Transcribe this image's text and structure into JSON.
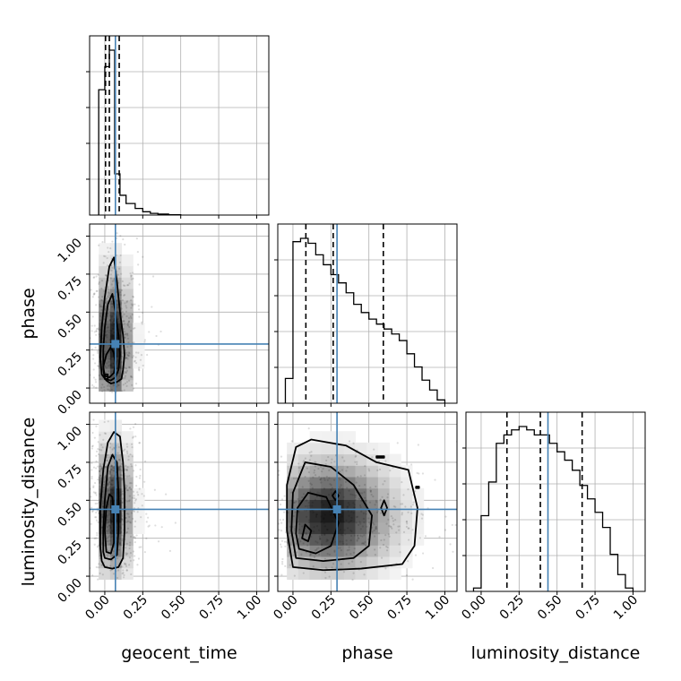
{
  "chart_data": {
    "type": "corner",
    "parameters": [
      "geocent_time",
      "phase",
      "luminosity_distance"
    ],
    "axis_labels": {
      "x": [
        "geocent_time",
        "phase",
        "luminosity_distance"
      ],
      "y": [
        "",
        "phase",
        "luminosity_distance"
      ]
    },
    "ranges": [
      [
        -0.1,
        1.08
      ],
      [
        -0.1,
        1.08
      ],
      [
        -0.1,
        1.08
      ]
    ],
    "ticks": [
      0.0,
      0.25,
      0.5,
      0.75,
      1.0
    ],
    "tick_labels": [
      "0.00",
      "0.25",
      "0.50",
      "0.75",
      "1.00"
    ],
    "grid": true,
    "colors": {
      "truth": "#4682b4",
      "hist": "#000000",
      "grid": "#b0b0b0",
      "density": "#000000"
    },
    "truths": {
      "geocent_time": 0.07,
      "phase": 0.29,
      "luminosity_distance": 0.44
    },
    "quantiles": {
      "geocent_time": [
        0.005,
        0.03,
        0.095
      ],
      "phase": [
        0.085,
        0.265,
        0.595
      ],
      "luminosity_distance": [
        0.17,
        0.39,
        0.665
      ]
    },
    "histograms": {
      "geocent_time": {
        "edges": [
          -0.04,
          0.0,
          0.03,
          0.065,
          0.1,
          0.14,
          0.2,
          0.25,
          0.3,
          0.35,
          0.42,
          0.5
        ],
        "counts": [
          0.76,
          0.9,
          1.0,
          0.25,
          0.12,
          0.07,
          0.04,
          0.02,
          0.01,
          0.006,
          0.002
        ]
      },
      "phase": {
        "edges": [
          -0.05,
          0.0,
          0.05,
          0.1,
          0.15,
          0.2,
          0.25,
          0.3,
          0.35,
          0.4,
          0.45,
          0.5,
          0.55,
          0.6,
          0.65,
          0.7,
          0.75,
          0.8,
          0.85,
          0.9,
          0.95,
          1.0
        ],
        "counts": [
          0.15,
          0.98,
          1.0,
          0.97,
          0.9,
          0.84,
          0.78,
          0.73,
          0.67,
          0.6,
          0.55,
          0.51,
          0.48,
          0.45,
          0.42,
          0.38,
          0.3,
          0.22,
          0.14,
          0.08,
          0.02
        ]
      },
      "luminosity_distance": {
        "edges": [
          -0.05,
          0.0,
          0.05,
          0.1,
          0.15,
          0.2,
          0.25,
          0.3,
          0.35,
          0.4,
          0.45,
          0.5,
          0.55,
          0.6,
          0.65,
          0.7,
          0.75,
          0.8,
          0.85,
          0.9,
          0.95,
          1.0
        ],
        "counts": [
          0.02,
          0.45,
          0.65,
          0.88,
          0.93,
          0.96,
          0.98,
          0.96,
          0.93,
          0.93,
          0.88,
          0.83,
          0.78,
          0.72,
          0.63,
          0.55,
          0.47,
          0.38,
          0.22,
          0.1,
          0.02
        ]
      }
    },
    "panels_2d": [
      {
        "x": "geocent_time",
        "y": "phase",
        "center": [
          0.055,
          0.3
        ],
        "spread": [
          0.07,
          0.28
        ],
        "contours": [
          [
            [
              0.01,
              0.05
            ],
            [
              0.04,
              0.03
            ],
            [
              0.08,
              0.04
            ],
            [
              0.11,
              0.06
            ],
            [
              0.12,
              0.12
            ],
            [
              0.13,
              0.22
            ],
            [
              0.12,
              0.35
            ],
            [
              0.1,
              0.5
            ],
            [
              0.08,
              0.7
            ],
            [
              0.06,
              0.86
            ],
            [
              0.03,
              0.8
            ],
            [
              0.0,
              0.6
            ],
            [
              -0.02,
              0.4
            ],
            [
              -0.03,
              0.2
            ],
            [
              -0.02,
              0.09
            ]
          ],
          [
            [
              0.0,
              0.06
            ],
            [
              0.04,
              0.05
            ],
            [
              0.07,
              0.07
            ],
            [
              0.09,
              0.12
            ],
            [
              0.1,
              0.22
            ],
            [
              0.09,
              0.35
            ],
            [
              0.07,
              0.5
            ],
            [
              0.05,
              0.62
            ],
            [
              0.02,
              0.55
            ],
            [
              0.0,
              0.4
            ],
            [
              -0.01,
              0.25
            ],
            [
              -0.01,
              0.12
            ]
          ],
          [
            [
              0.0,
              0.08
            ],
            [
              0.03,
              0.07
            ],
            [
              0.06,
              0.1
            ],
            [
              0.07,
              0.16
            ],
            [
              0.06,
              0.23
            ],
            [
              0.04,
              0.27
            ],
            [
              0.01,
              0.22
            ],
            [
              -0.01,
              0.14
            ]
          ],
          [
            [
              0.0,
              0.06
            ],
            [
              0.02,
              0.06
            ],
            [
              0.02,
              0.09
            ],
            [
              0.0,
              0.09
            ]
          ]
        ]
      },
      {
        "x": "geocent_time",
        "y": "luminosity_distance",
        "center": [
          0.055,
          0.44
        ],
        "spread": [
          0.07,
          0.25
        ],
        "contours": [
          [
            [
              0.0,
              0.06
            ],
            [
              0.05,
              0.05
            ],
            [
              0.09,
              0.06
            ],
            [
              0.12,
              0.12
            ],
            [
              0.13,
              0.3
            ],
            [
              0.13,
              0.55
            ],
            [
              0.12,
              0.75
            ],
            [
              0.1,
              0.92
            ],
            [
              0.06,
              0.95
            ],
            [
              0.02,
              0.88
            ],
            [
              -0.01,
              0.7
            ],
            [
              -0.03,
              0.45
            ],
            [
              -0.03,
              0.2
            ],
            [
              -0.02,
              0.1
            ]
          ],
          [
            [
              0.0,
              0.12
            ],
            [
              0.04,
              0.11
            ],
            [
              0.08,
              0.14
            ],
            [
              0.09,
              0.3
            ],
            [
              0.09,
              0.55
            ],
            [
              0.08,
              0.75
            ],
            [
              0.05,
              0.8
            ],
            [
              0.02,
              0.72
            ],
            [
              0.0,
              0.5
            ],
            [
              -0.01,
              0.3
            ],
            [
              -0.01,
              0.16
            ]
          ],
          [
            [
              0.01,
              0.16
            ],
            [
              0.04,
              0.15
            ],
            [
              0.06,
              0.22
            ],
            [
              0.06,
              0.4
            ],
            [
              0.05,
              0.52
            ],
            [
              0.03,
              0.54
            ],
            [
              0.01,
              0.45
            ],
            [
              0.0,
              0.3
            ]
          ]
        ]
      },
      {
        "x": "phase",
        "y": "luminosity_distance",
        "center": [
          0.25,
          0.4
        ],
        "spread": [
          0.25,
          0.22
        ],
        "contours": [
          [
            [
              0.0,
              0.06
            ],
            [
              0.2,
              0.04
            ],
            [
              0.45,
              0.05
            ],
            [
              0.72,
              0.08
            ],
            [
              0.8,
              0.2
            ],
            [
              0.82,
              0.45
            ],
            [
              0.76,
              0.7
            ],
            [
              0.55,
              0.75
            ],
            [
              0.35,
              0.86
            ],
            [
              0.12,
              0.9
            ],
            [
              0.02,
              0.85
            ],
            [
              -0.04,
              0.6
            ],
            [
              -0.04,
              0.3
            ]
          ],
          [
            [
              0.02,
              0.12
            ],
            [
              0.2,
              0.1
            ],
            [
              0.4,
              0.12
            ],
            [
              0.5,
              0.2
            ],
            [
              0.52,
              0.4
            ],
            [
              0.4,
              0.6
            ],
            [
              0.25,
              0.72
            ],
            [
              0.08,
              0.75
            ],
            [
              0.0,
              0.55
            ],
            [
              -0.01,
              0.3
            ]
          ],
          [
            [
              0.04,
              0.18
            ],
            [
              0.15,
              0.15
            ],
            [
              0.25,
              0.2
            ],
            [
              0.3,
              0.35
            ],
            [
              0.22,
              0.52
            ],
            [
              0.1,
              0.55
            ],
            [
              0.03,
              0.45
            ],
            [
              0.02,
              0.28
            ]
          ],
          [
            [
              0.06,
              0.25
            ],
            [
              0.1,
              0.23
            ],
            [
              0.12,
              0.3
            ],
            [
              0.08,
              0.34
            ]
          ],
          [
            [
              0.6,
              0.4
            ],
            [
              0.62,
              0.45
            ],
            [
              0.6,
              0.5
            ],
            [
              0.58,
              0.45
            ]
          ],
          [
            [
              0.28,
              0.5
            ],
            [
              0.3,
              0.53
            ],
            [
              0.28,
              0.56
            ],
            [
              0.26,
              0.53
            ]
          ],
          [
            [
              0.55,
              0.78
            ],
            [
              0.6,
              0.78
            ],
            [
              0.6,
              0.79
            ],
            [
              0.55,
              0.79
            ]
          ],
          [
            [
              0.81,
              0.58
            ],
            [
              0.83,
              0.58
            ],
            [
              0.83,
              0.59
            ],
            [
              0.81,
              0.59
            ]
          ]
        ]
      }
    ]
  }
}
